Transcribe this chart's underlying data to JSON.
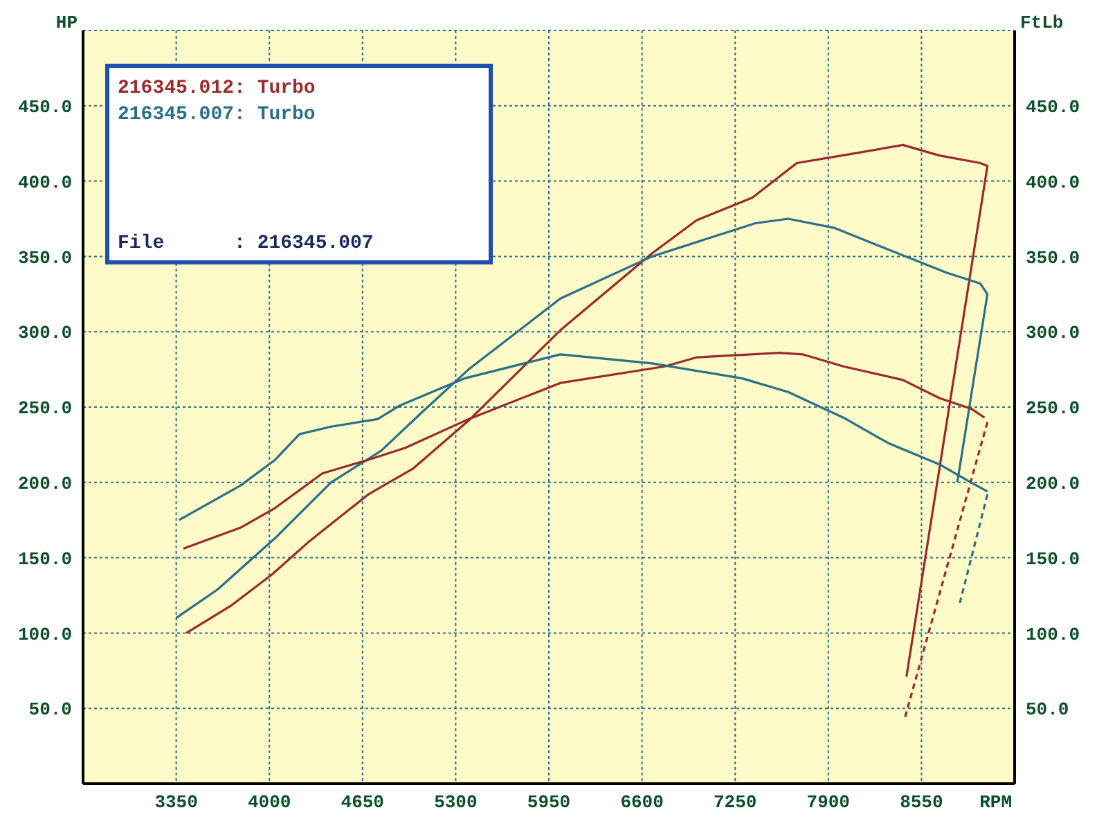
{
  "chart_data": {
    "type": "line",
    "xlabel": "RPM",
    "ylabel": "HP",
    "y2label": "FtLb",
    "xlim": [
      2700,
      9200
    ],
    "xticks": [
      3350,
      4000,
      4650,
      5300,
      5950,
      6600,
      7250,
      7900,
      8550
    ],
    "ylim": [
      0,
      500
    ],
    "yticks": [
      {
        "value": 50,
        "label": "50.0"
      },
      {
        "value": 100,
        "label": "100.0"
      },
      {
        "value": 150,
        "label": "150.0"
      },
      {
        "value": 200,
        "label": "200.0"
      },
      {
        "value": 250,
        "label": "250.0"
      },
      {
        "value": 300,
        "label": "300.0"
      },
      {
        "value": 350,
        "label": "350.0"
      },
      {
        "value": 400,
        "label": "400.0"
      },
      {
        "value": 450,
        "label": "450.0"
      }
    ],
    "y2lim": [
      0,
      500
    ],
    "y2ticks": [
      {
        "value": 50,
        "label": "50.0"
      },
      {
        "value": 100,
        "label": "100.0"
      },
      {
        "value": 150,
        "label": "150.0"
      },
      {
        "value": 200,
        "label": "200.0"
      },
      {
        "value": 250,
        "label": "250.0"
      },
      {
        "value": 300,
        "label": "300.0"
      },
      {
        "value": 350,
        "label": "350.0"
      },
      {
        "value": 400,
        "label": "400.0"
      },
      {
        "value": 450,
        "label": "450.0"
      }
    ],
    "grid": true,
    "legend": "top left",
    "annotations": [
      "File      : 216345.007"
    ],
    "series": [
      {
        "name": "216345.012: Turbo",
        "color": "#9b2a2a",
        "x": [
          3420,
          3730,
          4020,
          4280,
          4690,
          5000,
          5390,
          6030,
          6670,
          6980,
          7370,
          7680,
          8060,
          8420,
          8675,
          8960,
          9010,
          8445
        ],
        "values": [
          100,
          118,
          139,
          161,
          192,
          209,
          241,
          301,
          352,
          374,
          389,
          412,
          418,
          424,
          417,
          412,
          410,
          71
        ]
      },
      {
        "name": "216345.007: Turbo",
        "color": "#2a6f8a",
        "x": [
          3350,
          3640,
          4040,
          4430,
          4780,
          5070,
          5390,
          6030,
          6670,
          7390,
          7620,
          7940,
          8255,
          8730,
          8960,
          9010,
          8800
        ],
        "values": [
          110,
          129,
          163,
          200,
          221,
          247,
          275,
          322,
          350,
          372,
          375,
          369,
          357,
          339,
          332,
          325,
          200
        ]
      },
      {
        "color": "#9b2a2a",
        "x": [
          3400,
          3540,
          3800,
          4040,
          4370,
          4690,
          4950,
          5390,
          6030,
          6760,
          6980,
          7560,
          7720,
          8005,
          8420,
          8675,
          8895,
          8990
        ],
        "values": [
          156,
          161,
          170,
          183,
          206,
          215,
          223,
          242,
          266,
          277,
          283,
          286,
          285,
          277,
          268,
          256,
          249,
          243
        ]
      },
      {
        "color": "#9b2a2a",
        "line_style": "dashed",
        "x": [
          9010,
          8435
        ],
        "values": [
          240,
          44
        ]
      },
      {
        "color": "#2a6f8a",
        "x": [
          3370,
          3800,
          4040,
          4210,
          4430,
          4755,
          4910,
          5360,
          6030,
          6670,
          7300,
          7620,
          8005,
          8320,
          8675,
          8895,
          9010
        ],
        "values": [
          175,
          198,
          215,
          232,
          237,
          242,
          251,
          269,
          285,
          279,
          269,
          260,
          243,
          226,
          212,
          200,
          194
        ]
      },
      {
        "color": "#2a6f8a",
        "line_style": "dashed",
        "x": [
          9010,
          8818
        ],
        "values": [
          192,
          120
        ]
      }
    ]
  }
}
